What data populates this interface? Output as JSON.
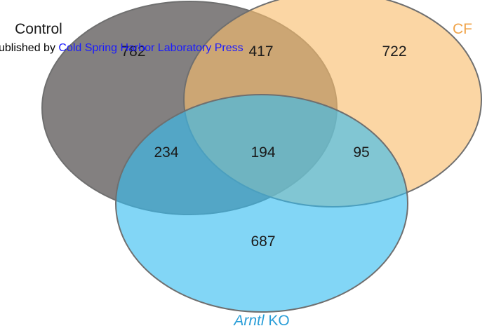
{
  "sets": [
    {
      "id": "control",
      "label": "Control",
      "fill": "#6d6a6a",
      "label_color": "#1a1a1a"
    },
    {
      "id": "cf",
      "label": "CF",
      "fill": "#f9bd6c",
      "label_color": "#f0a44a"
    },
    {
      "id": "arntl",
      "label_italic": "Arntl",
      "label_rest": " KO",
      "fill": "#35bdf0",
      "label_color": "#2a9ed8"
    }
  ],
  "regions": {
    "control_only": "782",
    "control_cf": "417",
    "cf_only": "722",
    "control_arntl": "234",
    "all_three": "194",
    "cf_arntl": "95",
    "arntl_only": "687"
  },
  "watermark": {
    "prefix": "ublished by ",
    "link_text": "Cold Spring Harbor Laboratory Press"
  },
  "colors": {
    "outline": "#6f6f6f",
    "watermark_link": "#1a1aff"
  }
}
